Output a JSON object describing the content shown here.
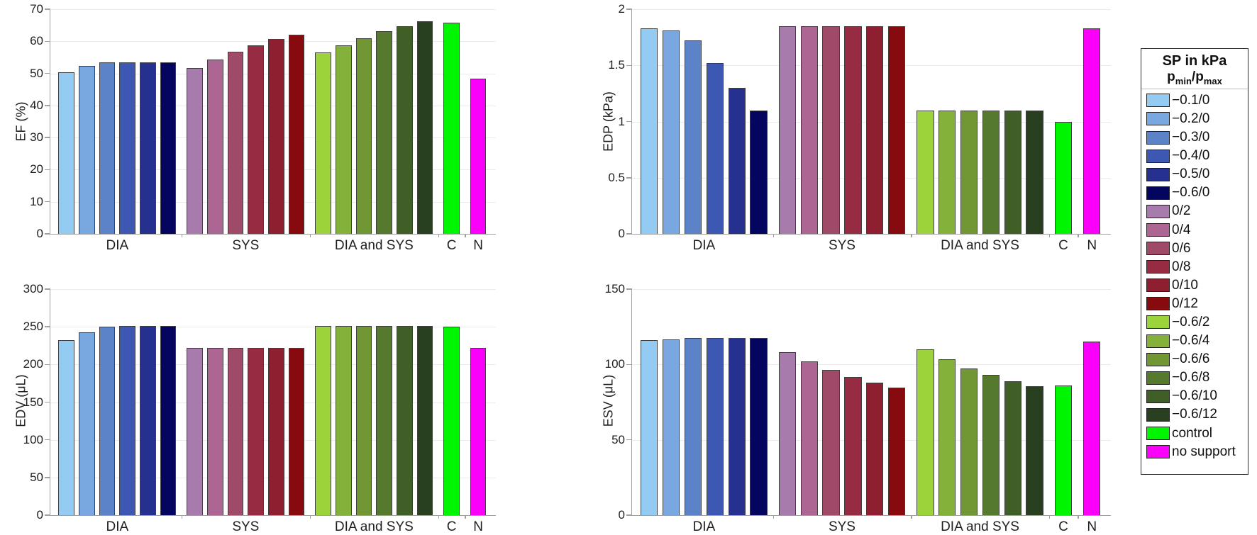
{
  "figure": {
    "background": "#ffffff"
  },
  "colors": {
    "bars": [
      "#94cbf3",
      "#79a7df",
      "#5c82c8",
      "#3c58b2",
      "#26308f",
      "#03055e",
      "#a87bad",
      "#ad6694",
      "#a04a69",
      "#962b42",
      "#8e1f30",
      "#870a0f",
      "#9cd23a",
      "#84b13a",
      "#719734",
      "#567a2d",
      "#405f27",
      "#283f20",
      "#00f500",
      "#fa00fa"
    ],
    "grid": "#ebebeb",
    "axis": "#a0a0a0",
    "text": "#1f1f1f",
    "bar_border": "#3f3f3f",
    "legend_border": "#2b2b2b"
  },
  "legend": {
    "title_line1": "SP in kPa",
    "p1": "p",
    "sub1": "min",
    "slash": "/",
    "p2": "p",
    "sub2": "max",
    "labels": [
      "−0.1/0",
      "−0.2/0",
      "−0.3/0",
      "−0.4/0",
      "−0.5/0",
      "−0.6/0",
      "0/2",
      "0/4",
      "0/6",
      "0/8",
      "0/10",
      "0/12",
      "−0.6/2",
      "−0.6/4",
      "−0.6/6",
      "−0.6/8",
      "−0.6/10",
      "−0.6/12",
      "control",
      "no support"
    ]
  },
  "chart_data": [
    {
      "type": "bar",
      "ylabel": "EF (%)",
      "ylim": [
        0,
        70
      ],
      "yticks": [
        0,
        10,
        20,
        30,
        40,
        50,
        60,
        70
      ],
      "grid": true,
      "legend_position": "right-outside",
      "groups": [
        {
          "label": "DIA",
          "values": [
            50.3,
            52.3,
            53.4,
            53.4,
            53.4,
            53.4
          ]
        },
        {
          "label": "SYS",
          "values": [
            51.6,
            54.3,
            56.8,
            58.8,
            60.7,
            62.0
          ]
        },
        {
          "label": "DIA and SYS",
          "values": [
            56.5,
            58.8,
            61.0,
            63.2,
            64.7,
            66.2
          ]
        },
        {
          "label": "C",
          "values": [
            65.9
          ]
        },
        {
          "label": "N",
          "values": [
            48.4
          ]
        }
      ]
    },
    {
      "type": "bar",
      "ylabel": "EDP (kPa)",
      "ylim": [
        0,
        2
      ],
      "yticks": [
        0,
        0.5,
        1,
        1.5,
        2
      ],
      "grid": true,
      "groups": [
        {
          "label": "DIA",
          "values": [
            1.83,
            1.81,
            1.72,
            1.52,
            1.3,
            1.1
          ]
        },
        {
          "label": "SYS",
          "values": [
            1.85,
            1.85,
            1.85,
            1.85,
            1.85,
            1.85
          ]
        },
        {
          "label": "DIA and SYS",
          "values": [
            1.1,
            1.1,
            1.1,
            1.1,
            1.1,
            1.1
          ]
        },
        {
          "label": "C",
          "values": [
            1.0
          ]
        },
        {
          "label": "N",
          "values": [
            1.83
          ]
        }
      ]
    },
    {
      "type": "bar",
      "ylabel": "EDV (μL)",
      "ylim": [
        0,
        300
      ],
      "yticks": [
        0,
        50,
        100,
        150,
        200,
        250,
        300
      ],
      "grid": true,
      "groups": [
        {
          "label": "DIA",
          "values": [
            232,
            243,
            250,
            251,
            251,
            251
          ]
        },
        {
          "label": "SYS",
          "values": [
            222,
            222,
            222,
            222,
            222,
            222
          ]
        },
        {
          "label": "DIA and SYS",
          "values": [
            251,
            251,
            251,
            251,
            251,
            251
          ]
        },
        {
          "label": "C",
          "values": [
            250
          ]
        },
        {
          "label": "N",
          "values": [
            222
          ]
        }
      ]
    },
    {
      "type": "bar",
      "ylabel": "ESV (μL)",
      "ylim": [
        0,
        150
      ],
      "yticks": [
        0,
        50,
        100,
        150
      ],
      "grid": true,
      "groups": [
        {
          "label": "DIA",
          "values": [
            116,
            116.5,
            117.5,
            117.5,
            117.5,
            117.5
          ]
        },
        {
          "label": "SYS",
          "values": [
            108,
            102,
            96.5,
            91.5,
            88,
            84.5
          ]
        },
        {
          "label": "DIA and SYS",
          "values": [
            110,
            103.5,
            97.5,
            93,
            89,
            85.5
          ]
        },
        {
          "label": "C",
          "values": [
            86
          ]
        },
        {
          "label": "N",
          "values": [
            115
          ]
        }
      ]
    }
  ]
}
